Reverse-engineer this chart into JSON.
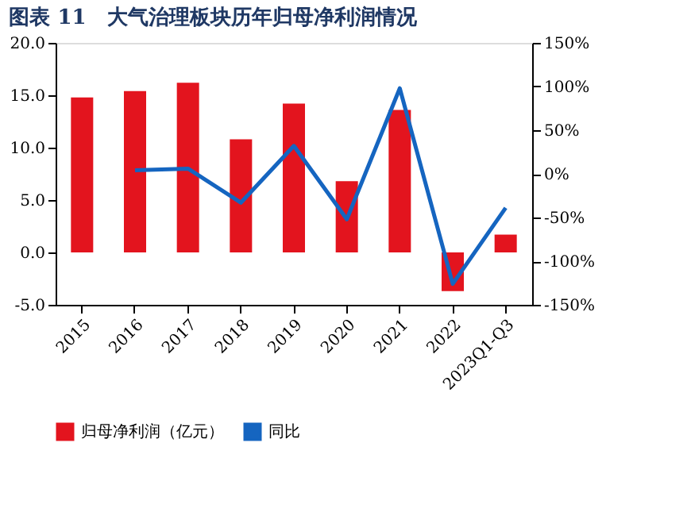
{
  "chart_data": {
    "type": "bar",
    "title": "图表 11　大气治理板块历年归母净利润情况",
    "categories": [
      "2015",
      "2016",
      "2017",
      "2018",
      "2019",
      "2020",
      "2021",
      "2022",
      "2023Q1-Q3"
    ],
    "series": [
      {
        "name": "归母净利润（亿元）",
        "color": "#e3141e",
        "values": [
          14.8,
          15.4,
          16.2,
          10.8,
          14.2,
          6.8,
          13.6,
          -3.7,
          1.7
        ]
      },
      {
        "name": "同比",
        "type": "line",
        "axis": "y2",
        "color": "#1565c0",
        "values": [
          null,
          4,
          6,
          -33,
          32,
          -52,
          98,
          -126,
          -39
        ]
      }
    ],
    "ylim": [
      -5,
      20
    ],
    "yticks": [
      {
        "value": -5,
        "label": "-5.0"
      },
      {
        "value": 0,
        "label": "0.0"
      },
      {
        "value": 5,
        "label": "5.0"
      },
      {
        "value": 10,
        "label": "10.0"
      },
      {
        "value": 15,
        "label": "15.0"
      },
      {
        "value": 20,
        "label": "20.0"
      }
    ],
    "y2lim": [
      -150,
      150
    ],
    "y2ticks": [
      {
        "value": -150,
        "label": "-150%"
      },
      {
        "value": -100,
        "label": "-100%"
      },
      {
        "value": -50,
        "label": "-50%"
      },
      {
        "value": 0,
        "label": "0%"
      },
      {
        "value": 50,
        "label": "50%"
      },
      {
        "value": 100,
        "label": "100%"
      },
      {
        "value": 150,
        "label": "150%"
      }
    ],
    "legend": "bottom",
    "grid": false,
    "marker": "none",
    "line_style": "solid"
  }
}
